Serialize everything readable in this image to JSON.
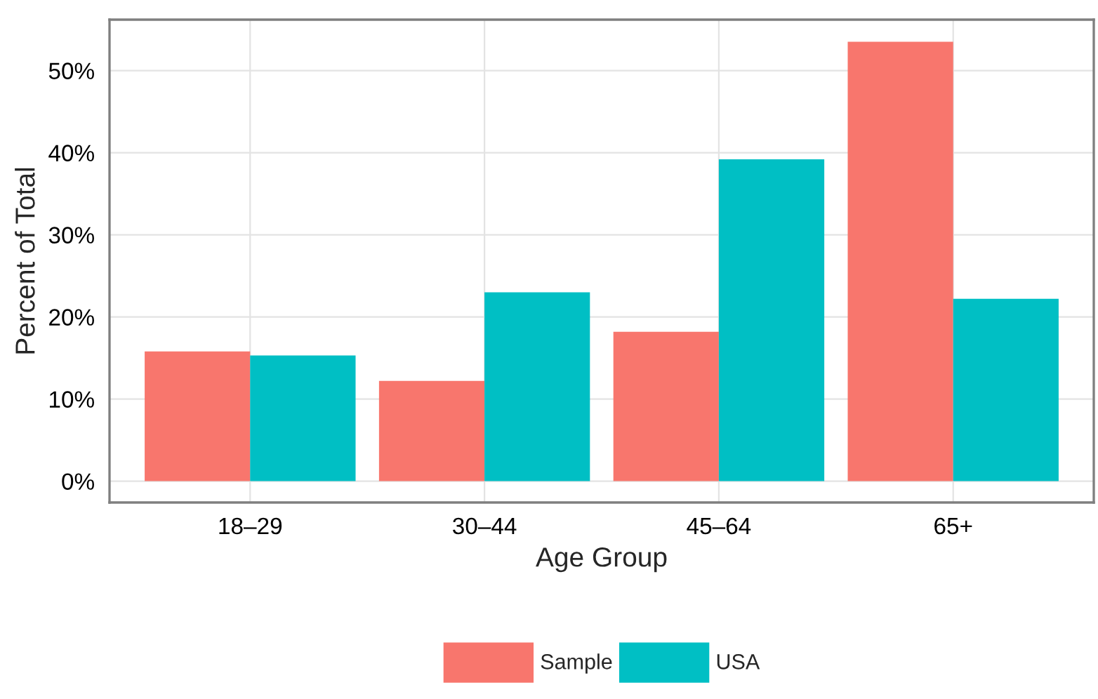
{
  "chart_data": {
    "type": "bar",
    "xlabel": "Age Group",
    "ylabel": "Percent of Total",
    "categories": [
      "18–29",
      "30–44",
      "45–64",
      "65+"
    ],
    "series": [
      {
        "name": "Sample",
        "color": "#f8766d",
        "values": [
          15.8,
          12.2,
          18.2,
          53.5
        ]
      },
      {
        "name": "USA",
        "color": "#00bfc4",
        "values": [
          15.3,
          23.0,
          39.2,
          22.2
        ]
      }
    ],
    "ylim": [
      -2.6,
      56.2
    ],
    "yticks": [
      {
        "value": 0,
        "label": "0%"
      },
      {
        "value": 10,
        "label": "10%"
      },
      {
        "value": 20,
        "label": "20%"
      },
      {
        "value": 30,
        "label": "30%"
      },
      {
        "value": 40,
        "label": "40%"
      },
      {
        "value": 50,
        "label": "50%"
      }
    ],
    "grid": true,
    "legend": "bottom"
  }
}
